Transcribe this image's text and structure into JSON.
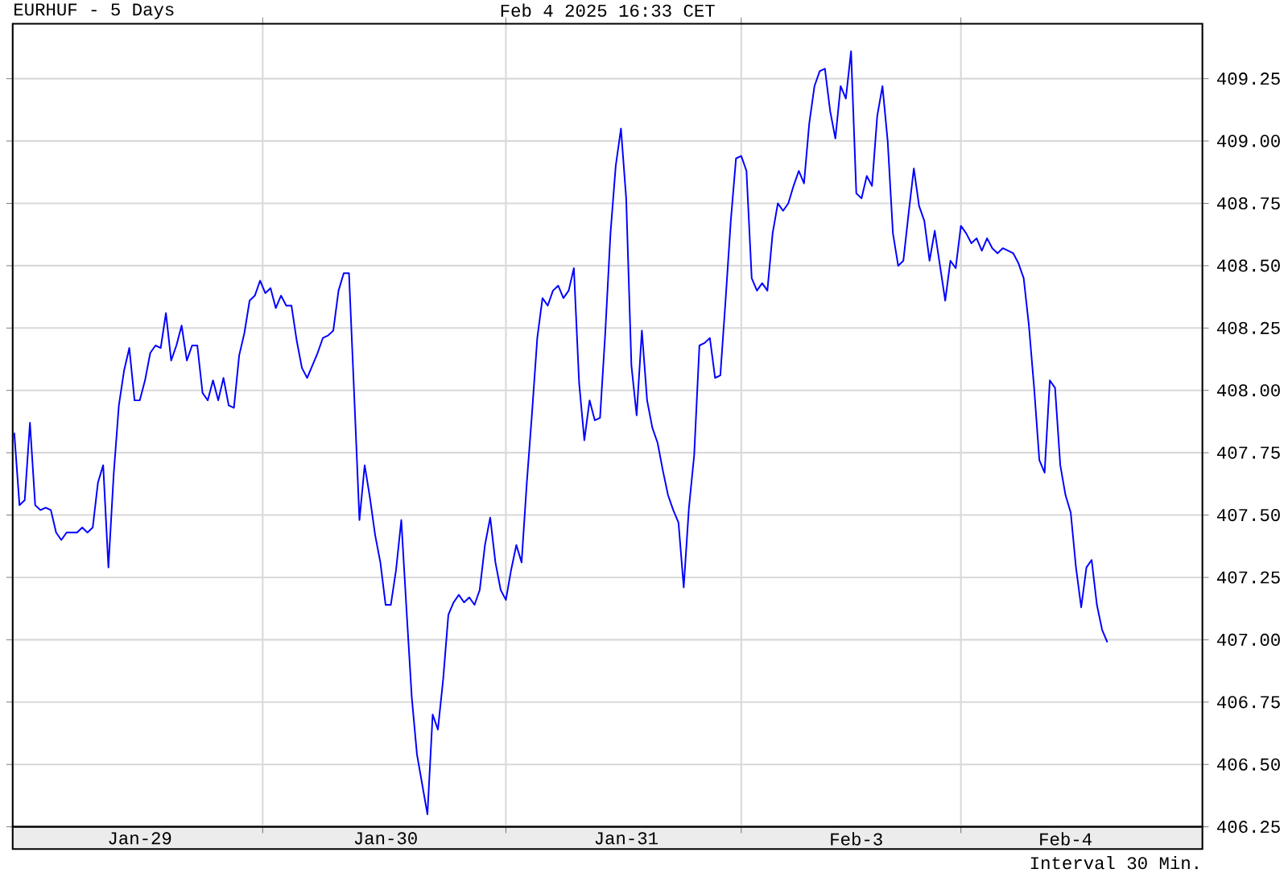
{
  "chart_data": {
    "type": "line",
    "title": "EURHUF - 5 Days",
    "subtitle": "Feb 4 2025 16:33 CET",
    "annotations": [
      "Interval 30 Min."
    ],
    "categories": [
      null,
      null,
      null,
      null,
      null,
      null,
      null,
      null,
      null,
      null,
      null,
      null,
      null,
      null,
      null,
      null,
      null,
      null,
      null,
      null,
      null,
      null,
      null,
      null,
      "Jan-29",
      null,
      null,
      null,
      null,
      null,
      null,
      null,
      null,
      null,
      null,
      null,
      null,
      null,
      null,
      null,
      null,
      null,
      null,
      null,
      null,
      null,
      null,
      null,
      null,
      null,
      null,
      null,
      null,
      null,
      null,
      null,
      null,
      null,
      null,
      null,
      null,
      null,
      null,
      null,
      null,
      null,
      null,
      null,
      null,
      null,
      null,
      "Jan-30",
      null,
      null,
      null,
      null,
      null,
      null,
      null,
      null,
      null,
      null,
      null,
      null,
      null,
      null,
      null,
      null,
      null,
      null,
      null,
      null,
      null,
      null,
      null,
      null,
      null,
      null,
      null,
      null,
      null,
      null,
      null,
      null,
      null,
      null,
      null,
      null,
      null,
      null,
      null,
      null,
      null,
      null,
      null,
      null,
      null,
      "Jan-31",
      null,
      null,
      null,
      null,
      null,
      null,
      null,
      null,
      null,
      null,
      null,
      null,
      null,
      null,
      null,
      null,
      null,
      null,
      null,
      null,
      null,
      null,
      null,
      null,
      null,
      null,
      null,
      null,
      null,
      null,
      null,
      null,
      null,
      null,
      null,
      null,
      null,
      null,
      null,
      null,
      null,
      null,
      null,
      "Feb-3",
      null,
      null,
      null,
      null,
      null,
      null,
      null,
      null,
      null,
      null,
      null,
      null,
      null,
      null,
      null,
      null,
      null,
      null,
      null,
      null,
      null,
      null,
      null,
      null,
      null,
      null,
      null,
      null,
      null,
      null,
      null,
      null,
      null,
      null,
      null,
      null,
      null,
      null,
      null,
      "Feb-4",
      null,
      null,
      null,
      null,
      null,
      null,
      null,
      null
    ],
    "series": [
      {
        "color": "#0000ff",
        "values": [
          407.83,
          407.54,
          407.56,
          407.87,
          407.54,
          407.52,
          407.53,
          407.52,
          407.43,
          407.4,
          407.43,
          407.43,
          407.43,
          407.45,
          407.43,
          407.45,
          407.63,
          407.7,
          407.29,
          407.66,
          407.94,
          408.08,
          408.17,
          407.96,
          407.96,
          408.04,
          408.15,
          408.18,
          408.17,
          408.31,
          408.12,
          408.18,
          408.26,
          408.12,
          408.18,
          408.18,
          407.99,
          407.96,
          408.04,
          407.96,
          408.05,
          407.94,
          407.93,
          408.14,
          408.23,
          408.36,
          408.38,
          408.44,
          408.39,
          408.41,
          408.33,
          408.38,
          408.34,
          408.34,
          408.2,
          408.09,
          408.05,
          408.1,
          408.15,
          408.21,
          408.22,
          408.24,
          408.4,
          408.47,
          408.47,
          407.98,
          407.48,
          407.7,
          407.57,
          407.42,
          407.31,
          407.14,
          407.14,
          407.28,
          407.48,
          407.12,
          406.77,
          406.54,
          406.42,
          406.3,
          406.7,
          406.64,
          406.84,
          407.1,
          407.15,
          407.18,
          407.15,
          407.17,
          407.14,
          407.2,
          407.38,
          407.49,
          407.31,
          407.2,
          407.16,
          407.28,
          407.38,
          407.31,
          407.63,
          407.91,
          408.21,
          408.37,
          408.34,
          408.4,
          408.42,
          408.37,
          408.4,
          408.49,
          408.03,
          407.8,
          407.96,
          407.88,
          407.89,
          408.23,
          408.63,
          408.9,
          409.05,
          408.77,
          408.1,
          407.9,
          408.24,
          407.96,
          407.85,
          407.79,
          407.68,
          407.58,
          407.52,
          407.47,
          407.21,
          407.53,
          407.74,
          408.18,
          408.19,
          408.21,
          408.05,
          408.06,
          408.36,
          408.68,
          408.93,
          408.94,
          408.88,
          408.45,
          408.4,
          408.43,
          408.4,
          408.63,
          408.75,
          408.72,
          408.75,
          408.82,
          408.88,
          408.83,
          409.07,
          409.22,
          409.28,
          409.29,
          409.12,
          409.01,
          409.22,
          409.17,
          409.36,
          408.79,
          408.77,
          408.86,
          408.82,
          409.1,
          409.22,
          409.0,
          408.63,
          408.5,
          408.52,
          408.71,
          408.89,
          408.74,
          408.68,
          408.52,
          408.64,
          408.5,
          408.36,
          408.52,
          408.49,
          408.66,
          408.63,
          408.59,
          408.61,
          408.56,
          408.61,
          408.57,
          408.55,
          408.57,
          408.56,
          408.55,
          408.51,
          408.45,
          408.26,
          408.01,
          407.72,
          407.67,
          408.04,
          408.01,
          407.7,
          407.58,
          407.51,
          407.29,
          407.13,
          407.29,
          407.32,
          407.14,
          407.04,
          406.99
        ]
      }
    ],
    "ylim": [
      406.25,
      409.47
    ],
    "yticks": [
      {
        "value": 406.25,
        "label": "406.25"
      },
      {
        "value": 406.5,
        "label": "406.50"
      },
      {
        "value": 406.75,
        "label": "406.75"
      },
      {
        "value": 407,
        "label": "407.00"
      },
      {
        "value": 407.25,
        "label": "407.25"
      },
      {
        "value": 407.5,
        "label": "407.50"
      },
      {
        "value": 407.75,
        "label": "407.75"
      },
      {
        "value": 408,
        "label": "408.00"
      },
      {
        "value": 408.25,
        "label": "408.25"
      },
      {
        "value": 408.5,
        "label": "408.50"
      },
      {
        "value": 408.75,
        "label": "408.75"
      },
      {
        "value": 409,
        "label": "409.00"
      },
      {
        "value": 409.25,
        "label": "409.25"
      }
    ],
    "grid": true,
    "marker": "none",
    "line_style": "solid"
  }
}
